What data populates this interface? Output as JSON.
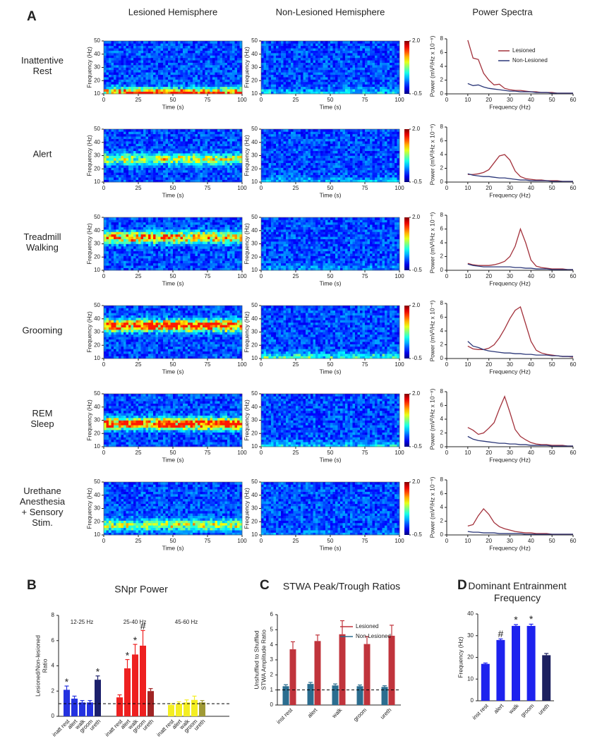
{
  "chart_data": [
    {
      "type": "spectrogram_grid",
      "label": "A",
      "columns": [
        "Lesioned Hemisphere",
        "Non-Lesioned Hemisphere",
        "Power Spectra"
      ],
      "rows": [
        [
          "Inattentive",
          "Rest"
        ],
        [
          "Alert"
        ],
        [
          "Treadmill",
          "Walking"
        ],
        [
          "Grooming"
        ],
        [
          "REM",
          "Sleep"
        ],
        [
          "Urethane",
          "Anesthesia",
          "+ Sensory",
          "Stim."
        ]
      ],
      "spectrogram": {
        "xlabel": "Time (s)",
        "ylabel": "Frequency (Hz)",
        "xlim": [
          0,
          100
        ],
        "xticks": [
          0,
          25,
          50,
          75,
          100
        ],
        "ylim": [
          10,
          50
        ],
        "yticks": [
          10,
          20,
          30,
          40,
          50
        ],
        "colorbar_lim": [
          -0.5,
          2
        ],
        "colorbar_ticks": [
          {
            "value": 2,
            "label": "2.0"
          },
          -0.5
        ]
      },
      "spectra": {
        "xlabel": "Frequency (Hz)",
        "ylabel": "Power (mV²/Hz x 10⁻⁶)",
        "xlim": [
          0,
          60
        ],
        "xticks": [
          0,
          10,
          20,
          30,
          40,
          50,
          60
        ],
        "ylim": [
          0,
          8
        ],
        "yticks": [
          0,
          2,
          4,
          6,
          8
        ],
        "x": [
          10,
          12.5,
          15,
          17.5,
          20,
          22.5,
          25,
          27.5,
          30,
          32.5,
          35,
          37.5,
          40,
          42.5,
          45,
          47.5,
          50,
          52.5,
          55,
          57.5,
          60
        ],
        "series": [
          {
            "name": "Lesioned",
            "color": "#a3323c",
            "values": [
              [
                7.8,
                5.2,
                5.0,
                3.0,
                2.0,
                1.3,
                1.4,
                0.8,
                0.6,
                0.5,
                0.5,
                0.4,
                0.3,
                0.3,
                0.2,
                0.2,
                0.2,
                0.1,
                0.1,
                0.1,
                0.1
              ],
              [
                1.1,
                1.1,
                1.2,
                1.4,
                1.8,
                2.8,
                3.8,
                4.0,
                3.2,
                1.6,
                0.8,
                0.5,
                0.4,
                0.3,
                0.3,
                0.2,
                0.2,
                0.2,
                0.1,
                0.1,
                0.1
              ],
              [
                1.0,
                0.8,
                0.7,
                0.7,
                0.7,
                0.8,
                1.0,
                1.3,
                2.0,
                3.5,
                6.0,
                4.0,
                1.5,
                0.6,
                0.4,
                0.3,
                0.2,
                0.2,
                0.2,
                0.1,
                0.1
              ],
              [
                1.8,
                1.4,
                1.3,
                1.3,
                1.5,
                2.0,
                3.0,
                4.3,
                5.8,
                7.0,
                7.5,
                5.0,
                2.5,
                1.2,
                0.8,
                0.6,
                0.5,
                0.4,
                0.3,
                0.3,
                0.2
              ],
              [
                2.8,
                2.4,
                1.8,
                2.0,
                2.7,
                3.5,
                5.5,
                7.3,
                5.0,
                2.5,
                1.5,
                1.0,
                0.6,
                0.4,
                0.3,
                0.3,
                0.2,
                0.2,
                0.2,
                0.1,
                0.1
              ],
              [
                1.3,
                1.5,
                2.8,
                3.8,
                3.0,
                1.8,
                1.2,
                0.9,
                0.7,
                0.5,
                0.4,
                0.3,
                0.3,
                0.2,
                0.2,
                0.2,
                0.1,
                0.1,
                0.1,
                0.1,
                0.1
              ]
            ]
          },
          {
            "name": "Non-Lesioned",
            "color": "#2b3778",
            "values": [
              [
                1.5,
                1.2,
                1.3,
                1.0,
                0.8,
                0.7,
                0.6,
                0.5,
                0.4,
                0.4,
                0.3,
                0.3,
                0.3,
                0.2,
                0.2,
                0.2,
                0.1,
                0.1,
                0.1,
                0.1,
                0.1
              ],
              [
                1.2,
                1.0,
                0.9,
                0.8,
                0.8,
                0.7,
                0.6,
                0.6,
                0.5,
                0.4,
                0.3,
                0.3,
                0.2,
                0.2,
                0.2,
                0.2,
                0.1,
                0.1,
                0.1,
                0.1,
                0.1
              ],
              [
                0.9,
                0.7,
                0.6,
                0.5,
                0.5,
                0.5,
                0.5,
                0.5,
                0.5,
                0.4,
                0.4,
                0.3,
                0.3,
                0.2,
                0.2,
                0.2,
                0.1,
                0.1,
                0.1,
                0.1,
                0.1
              ],
              [
                2.5,
                1.8,
                1.6,
                1.3,
                1.1,
                1.0,
                0.9,
                0.8,
                0.8,
                0.7,
                0.7,
                0.6,
                0.6,
                0.5,
                0.5,
                0.5,
                0.4,
                0.4,
                0.3,
                0.3,
                0.3
              ],
              [
                1.5,
                1.1,
                0.9,
                0.8,
                0.7,
                0.6,
                0.5,
                0.5,
                0.4,
                0.4,
                0.3,
                0.3,
                0.2,
                0.2,
                0.2,
                0.2,
                0.1,
                0.1,
                0.1,
                0.1,
                0.1
              ],
              [
                0.5,
                0.4,
                0.4,
                0.3,
                0.3,
                0.3,
                0.2,
                0.2,
                0.2,
                0.2,
                0.2,
                0.1,
                0.1,
                0.1,
                0.1,
                0.1,
                0.1,
                0.1,
                0.1,
                0.1,
                0.1
              ]
            ]
          }
        ]
      }
    },
    {
      "type": "grouped_bar",
      "label": "B",
      "title": "SNpr Power",
      "ylabel": [
        "Lesioned/Non-lesioned",
        "Ratio"
      ],
      "ylim": [
        0,
        8
      ],
      "yticks": [
        0,
        2,
        4,
        6,
        8
      ],
      "reference_line": 1,
      "categories": [
        "inatt rest",
        "alert",
        "walk",
        "groom",
        "ureth"
      ],
      "groups": [
        {
          "name": "12-25 Hz",
          "colors": [
            "#2432e0",
            "#2432e0",
            "#2432e0",
            "#2432e0",
            "#1c206c"
          ],
          "values": [
            2.1,
            1.4,
            1.1,
            1.1,
            2.9
          ],
          "errors": [
            0.3,
            0.2,
            0.15,
            0.15,
            0.3
          ],
          "annotations": [
            "*",
            null,
            null,
            null,
            "*"
          ]
        },
        {
          "name": "25-40 Hz",
          "colors": [
            "#ee2020",
            "#ee2020",
            "#ee2020",
            "#ee2020",
            "#a02424"
          ],
          "values": [
            1.5,
            3.8,
            4.9,
            5.6,
            2.0
          ],
          "errors": [
            0.2,
            0.7,
            0.8,
            1.2,
            0.2
          ],
          "annotations": [
            null,
            "*",
            "*",
            "#",
            null
          ]
        },
        {
          "name": "45-60 Hz",
          "colors": [
            "#f4ee22",
            "#f4ee22",
            "#f4ee22",
            "#f4ee22",
            "#a09a36"
          ],
          "values": [
            0.9,
            1.0,
            1.1,
            1.3,
            1.1
          ],
          "errors": [
            0.1,
            0.15,
            0.2,
            0.3,
            0.15
          ],
          "annotations": [
            null,
            null,
            null,
            null,
            null
          ]
        }
      ]
    },
    {
      "type": "bar",
      "label": "C",
      "title": "STWA Peak/Trough Ratios",
      "ylabel": [
        "Unshuffled to Shuffled",
        "STWA Amplitude Ratio"
      ],
      "ylim": [
        0,
        6
      ],
      "yticks": [
        0,
        1,
        2,
        3,
        4,
        5,
        6
      ],
      "reference_line": 1,
      "categories": [
        "inst rest",
        "alert",
        "walk",
        "groom",
        "ureth"
      ],
      "series": [
        {
          "name": "Lesioned",
          "color": "#c0343c",
          "values": [
            3.7,
            4.25,
            4.7,
            4.05,
            4.6
          ],
          "errors": [
            0.5,
            0.4,
            0.9,
            0.5,
            0.7
          ]
        },
        {
          "name": "Non-Lesioned",
          "color": "#2b6d8f",
          "values": [
            1.25,
            1.4,
            1.3,
            1.25,
            1.2
          ],
          "errors": [
            0.1,
            0.1,
            0.1,
            0.08,
            0.08
          ]
        }
      ]
    },
    {
      "type": "single_bar",
      "label": "D",
      "title": [
        "Dominant Entrainment",
        "Frequency"
      ],
      "ylabel": [
        "Frequency (Hz)"
      ],
      "ylim": [
        0,
        40
      ],
      "yticks": [
        0,
        10,
        20,
        30,
        40
      ],
      "categories": [
        "inst rest",
        "alert",
        "walk",
        "groom",
        "ureth"
      ],
      "colors": [
        "#1d22ee",
        "#1d22ee",
        "#1d22ee",
        "#1d22ee",
        "#1c2060"
      ],
      "values": [
        17,
        28,
        34.5,
        34.5,
        21
      ],
      "errors": [
        0.4,
        0.5,
        0.6,
        0.8,
        0.8
      ],
      "annotations": [
        null,
        "#",
        "*",
        "*",
        null
      ]
    }
  ]
}
